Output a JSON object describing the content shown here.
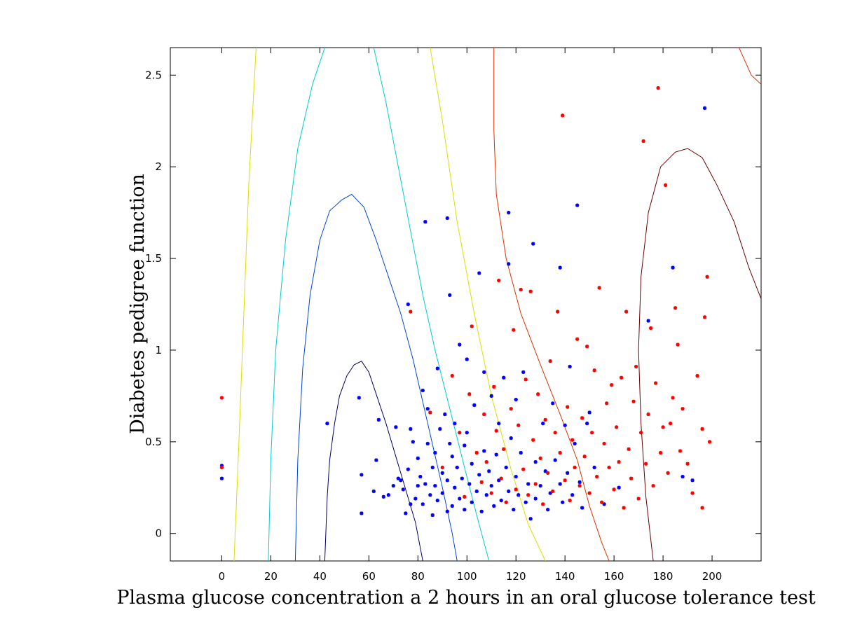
{
  "chart_data": {
    "type": "scatter",
    "title": "",
    "xlabel": "Plasma glucose concentration a 2 hours in an oral glucose tolerance test",
    "ylabel": "Diabetes pedigree function",
    "xlim": [
      -21,
      220
    ],
    "ylim": [
      -0.15,
      2.65
    ],
    "xticks": [
      0,
      20,
      40,
      60,
      80,
      100,
      120,
      140,
      160,
      180,
      200
    ],
    "yticks": [
      0,
      0.5,
      1,
      1.5,
      2,
      2.5
    ],
    "ytick_labels": [
      "0",
      "0.5",
      "1",
      "1.5",
      "2",
      "2.5"
    ],
    "grid": false,
    "legend": "none",
    "marker": "*",
    "series": [
      {
        "color": "#0000ff",
        "points": [
          [
            0,
            0.3
          ],
          [
            0,
            0.37
          ],
          [
            43,
            0.6
          ],
          [
            56,
            0.74
          ],
          [
            57,
            0.32
          ],
          [
            57,
            0.11
          ],
          [
            62,
            0.23
          ],
          [
            63,
            0.4
          ],
          [
            64,
            0.62
          ],
          [
            66,
            0.2
          ],
          [
            68,
            0.21
          ],
          [
            70,
            0.26
          ],
          [
            71,
            0.58
          ],
          [
            72,
            0.3
          ],
          [
            73,
            0.29
          ],
          [
            74,
            0.24
          ],
          [
            75,
            0.11
          ],
          [
            76,
            0.35
          ],
          [
            77,
            0.16
          ],
          [
            77,
            0.57
          ],
          [
            78,
            0.5
          ],
          [
            79,
            0.19
          ],
          [
            80,
            0.26
          ],
          [
            80,
            0.41
          ],
          [
            81,
            0.31
          ],
          [
            82,
            0.78
          ],
          [
            82,
            0.16
          ],
          [
            83,
            0.27
          ],
          [
            84,
            0.49
          ],
          [
            84,
            0.68
          ],
          [
            85,
            0.21
          ],
          [
            86,
            0.36
          ],
          [
            86,
            0.1
          ],
          [
            87,
            0.44
          ],
          [
            87,
            0.26
          ],
          [
            88,
            0.9
          ],
          [
            88,
            0.18
          ],
          [
            89,
            0.57
          ],
          [
            90,
            0.33
          ],
          [
            90,
            0.22
          ],
          [
            91,
            0.65
          ],
          [
            92,
            0.12
          ],
          [
            92,
            0.29
          ],
          [
            93,
            0.49
          ],
          [
            94,
            0.42
          ],
          [
            94,
            0.15
          ],
          [
            95,
            0.25
          ],
          [
            95,
            0.6
          ],
          [
            96,
            0.36
          ],
          [
            97,
            1.03
          ],
          [
            97,
            0.19
          ],
          [
            98,
            0.3
          ],
          [
            99,
            0.48
          ],
          [
            99,
            0.13
          ],
          [
            100,
            0.55
          ],
          [
            100,
            0.95
          ],
          [
            101,
            0.27
          ],
          [
            102,
            0.38
          ],
          [
            102,
            0.17
          ],
          [
            103,
            0.7
          ],
          [
            104,
            0.23
          ],
          [
            105,
            0.32
          ],
          [
            105,
            1.42
          ],
          [
            106,
            0.12
          ],
          [
            107,
            0.45
          ],
          [
            107,
            0.88
          ],
          [
            108,
            0.21
          ],
          [
            109,
            0.34
          ],
          [
            110,
            0.26
          ],
          [
            110,
            0.75
          ],
          [
            111,
            0.15
          ],
          [
            112,
            0.43
          ],
          [
            113,
            0.29
          ],
          [
            113,
            0.6
          ],
          [
            114,
            0.18
          ],
          [
            115,
            0.85
          ],
          [
            116,
            0.36
          ],
          [
            117,
            0.23
          ],
          [
            117,
            1.47
          ],
          [
            118,
            0.52
          ],
          [
            119,
            0.13
          ],
          [
            120,
            0.31
          ],
          [
            120,
            0.73
          ],
          [
            121,
            0.21
          ],
          [
            122,
            0.44
          ],
          [
            123,
            0.88
          ],
          [
            124,
            0.17
          ],
          [
            125,
            0.27
          ],
          [
            126,
            0.08
          ],
          [
            127,
            1.58
          ],
          [
            128,
            0.39
          ],
          [
            128,
            0.19
          ],
          [
            130,
            0.26
          ],
          [
            131,
            0.6
          ],
          [
            132,
            0.34
          ],
          [
            133,
            0.13
          ],
          [
            134,
            0.22
          ],
          [
            135,
            0.71
          ],
          [
            136,
            0.4
          ],
          [
            138,
            1.45
          ],
          [
            138,
            0.27
          ],
          [
            139,
            0.17
          ],
          [
            140,
            0.59
          ],
          [
            141,
            0.33
          ],
          [
            142,
            0.91
          ],
          [
            143,
            0.21
          ],
          [
            144,
            0.49
          ],
          [
            145,
            1.79
          ],
          [
            146,
            0.28
          ],
          [
            147,
            0.14
          ],
          [
            149,
            0.6
          ],
          [
            150,
            0.66
          ],
          [
            152,
            0.36
          ],
          [
            156,
            0.16
          ],
          [
            162,
            0.25
          ],
          [
            174,
            1.16
          ],
          [
            184,
            1.45
          ],
          [
            188,
            0.31
          ],
          [
            192,
            0.29
          ],
          [
            197,
            2.32
          ],
          [
            76,
            1.25
          ],
          [
            83,
            1.7
          ],
          [
            92,
            1.72
          ],
          [
            93,
            1.3
          ],
          [
            117,
            1.75
          ]
        ]
      },
      {
        "color": "#ff0000",
        "points": [
          [
            0,
            0.74
          ],
          [
            0,
            0.36
          ],
          [
            77,
            1.21
          ],
          [
            85,
            0.66
          ],
          [
            90,
            0.36
          ],
          [
            94,
            0.86
          ],
          [
            97,
            0.55
          ],
          [
            99,
            0.2
          ],
          [
            101,
            0.76
          ],
          [
            102,
            1.13
          ],
          [
            104,
            0.44
          ],
          [
            106,
            0.28
          ],
          [
            107,
            0.65
          ],
          [
            108,
            0.39
          ],
          [
            110,
            0.22
          ],
          [
            111,
            0.8
          ],
          [
            112,
            0.56
          ],
          [
            113,
            1.38
          ],
          [
            114,
            0.3
          ],
          [
            115,
            0.46
          ],
          [
            116,
            0.17
          ],
          [
            118,
            0.68
          ],
          [
            119,
            1.11
          ],
          [
            120,
            0.24
          ],
          [
            121,
            0.59
          ],
          [
            122,
            1.33
          ],
          [
            123,
            0.35
          ],
          [
            124,
            0.84
          ],
          [
            125,
            0.21
          ],
          [
            126,
            1.32
          ],
          [
            127,
            0.51
          ],
          [
            128,
            0.27
          ],
          [
            129,
            0.76
          ],
          [
            130,
            0.41
          ],
          [
            131,
            0.16
          ],
          [
            132,
            0.62
          ],
          [
            133,
            0.33
          ],
          [
            134,
            0.94
          ],
          [
            135,
            0.23
          ],
          [
            136,
            0.55
          ],
          [
            137,
            1.21
          ],
          [
            138,
            0.44
          ],
          [
            139,
            2.28
          ],
          [
            140,
            0.29
          ],
          [
            141,
            0.69
          ],
          [
            142,
            0.18
          ],
          [
            143,
            0.51
          ],
          [
            144,
            0.36
          ],
          [
            145,
            1.06
          ],
          [
            146,
            0.26
          ],
          [
            147,
            0.63
          ],
          [
            148,
            0.42
          ],
          [
            149,
            1.02
          ],
          [
            150,
            0.22
          ],
          [
            151,
            0.55
          ],
          [
            152,
            0.89
          ],
          [
            153,
            0.31
          ],
          [
            154,
            1.34
          ],
          [
            155,
            0.17
          ],
          [
            156,
            0.49
          ],
          [
            157,
            0.71
          ],
          [
            158,
            0.36
          ],
          [
            159,
            0.81
          ],
          [
            160,
            0.24
          ],
          [
            161,
            0.58
          ],
          [
            162,
            0.39
          ],
          [
            163,
            0.85
          ],
          [
            164,
            0.14
          ],
          [
            165,
            1.21
          ],
          [
            166,
            0.46
          ],
          [
            167,
            0.3
          ],
          [
            168,
            0.72
          ],
          [
            169,
            0.91
          ],
          [
            170,
            0.19
          ],
          [
            171,
            0.55
          ],
          [
            172,
            2.14
          ],
          [
            173,
            0.38
          ],
          [
            174,
            0.65
          ],
          [
            175,
            1.12
          ],
          [
            176,
            0.26
          ],
          [
            177,
            0.82
          ],
          [
            178,
            2.43
          ],
          [
            179,
            0.44
          ],
          [
            180,
            0.58
          ],
          [
            181,
            1.9
          ],
          [
            182,
            0.33
          ],
          [
            183,
            0.6
          ],
          [
            184,
            0.74
          ],
          [
            185,
            1.23
          ],
          [
            186,
            1.03
          ],
          [
            187,
            0.45
          ],
          [
            188,
            0.68
          ],
          [
            190,
            0.38
          ],
          [
            192,
            0.22
          ],
          [
            194,
            0.86
          ],
          [
            196,
            0.14
          ],
          [
            197,
            1.18
          ],
          [
            198,
            1.4
          ],
          [
            199,
            0.5
          ],
          [
            196,
            0.57
          ]
        ]
      }
    ],
    "contours": [
      {
        "color": "#000066",
        "points": [
          [
            42,
            -0.15
          ],
          [
            43,
            0.2
          ],
          [
            44,
            0.4
          ],
          [
            46,
            0.6
          ],
          [
            48,
            0.75
          ],
          [
            51,
            0.86
          ],
          [
            54,
            0.92
          ],
          [
            57,
            0.94
          ],
          [
            60,
            0.88
          ],
          [
            63,
            0.76
          ],
          [
            67,
            0.6
          ],
          [
            71,
            0.42
          ],
          [
            75,
            0.24
          ],
          [
            79,
            0.06
          ],
          [
            81,
            -0.08
          ],
          [
            82,
            -0.15
          ]
        ]
      },
      {
        "color": "#0044dd",
        "points": [
          [
            30,
            -0.15
          ],
          [
            31,
            0.4
          ],
          [
            33,
            0.9
          ],
          [
            36,
            1.3
          ],
          [
            40,
            1.6
          ],
          [
            44,
            1.76
          ],
          [
            49,
            1.82
          ],
          [
            53,
            1.85
          ],
          [
            58,
            1.78
          ],
          [
            63,
            1.6
          ],
          [
            68,
            1.4
          ],
          [
            73,
            1.2
          ],
          [
            78,
            0.95
          ],
          [
            84,
            0.6
          ],
          [
            90,
            0.25
          ],
          [
            94,
            0.0
          ],
          [
            96,
            -0.15
          ]
        ]
      },
      {
        "color": "#00cccc",
        "points": [
          [
            19,
            -0.15
          ],
          [
            20,
            0.4
          ],
          [
            22,
            1.0
          ],
          [
            26,
            1.6
          ],
          [
            31,
            2.1
          ],
          [
            37,
            2.45
          ],
          [
            42,
            2.65
          ]
        ]
      },
      {
        "color": "#00cccc",
        "points": [
          [
            62,
            2.65
          ],
          [
            67,
            2.35
          ],
          [
            72,
            2.0
          ],
          [
            77,
            1.65
          ],
          [
            82,
            1.3
          ],
          [
            87,
            1.0
          ],
          [
            93,
            0.68
          ],
          [
            99,
            0.36
          ],
          [
            104,
            0.1
          ],
          [
            109,
            -0.15
          ]
        ]
      },
      {
        "color": "#dddd00",
        "points": [
          [
            5,
            -0.15
          ],
          [
            7,
            0.5
          ],
          [
            9,
            1.2
          ],
          [
            11,
            1.9
          ],
          [
            14,
            2.65
          ]
        ]
      },
      {
        "color": "#dddd00",
        "points": [
          [
            85,
            2.65
          ],
          [
            90,
            2.25
          ],
          [
            96,
            1.7
          ],
          [
            103,
            1.2
          ],
          [
            110,
            0.75
          ],
          [
            118,
            0.35
          ],
          [
            125,
            0.05
          ],
          [
            132,
            -0.15
          ]
        ]
      },
      {
        "color": "#dd3300",
        "points": [
          [
            111,
            2.65
          ],
          [
            111,
            2.2
          ],
          [
            112,
            1.85
          ],
          [
            116,
            1.5
          ],
          [
            122,
            1.2
          ],
          [
            130,
            0.92
          ],
          [
            138,
            0.65
          ],
          [
            145,
            0.4
          ],
          [
            150,
            0.15
          ],
          [
            155,
            -0.05
          ],
          [
            158,
            -0.15
          ]
        ]
      },
      {
        "color": "#dd3300",
        "points": [
          [
            211,
            2.65
          ],
          [
            216,
            2.5
          ],
          [
            220,
            2.45
          ]
        ]
      },
      {
        "color": "#660000",
        "points": [
          [
            176,
            -0.15
          ],
          [
            173,
            0.2
          ],
          [
            171,
            0.6
          ],
          [
            170,
            1.0
          ],
          [
            171,
            1.4
          ],
          [
            174,
            1.75
          ],
          [
            179,
            2.0
          ],
          [
            185,
            2.08
          ],
          [
            190,
            2.1
          ],
          [
            196,
            2.05
          ],
          [
            202,
            1.9
          ],
          [
            209,
            1.7
          ],
          [
            215,
            1.45
          ],
          [
            220,
            1.28
          ]
        ]
      }
    ]
  }
}
